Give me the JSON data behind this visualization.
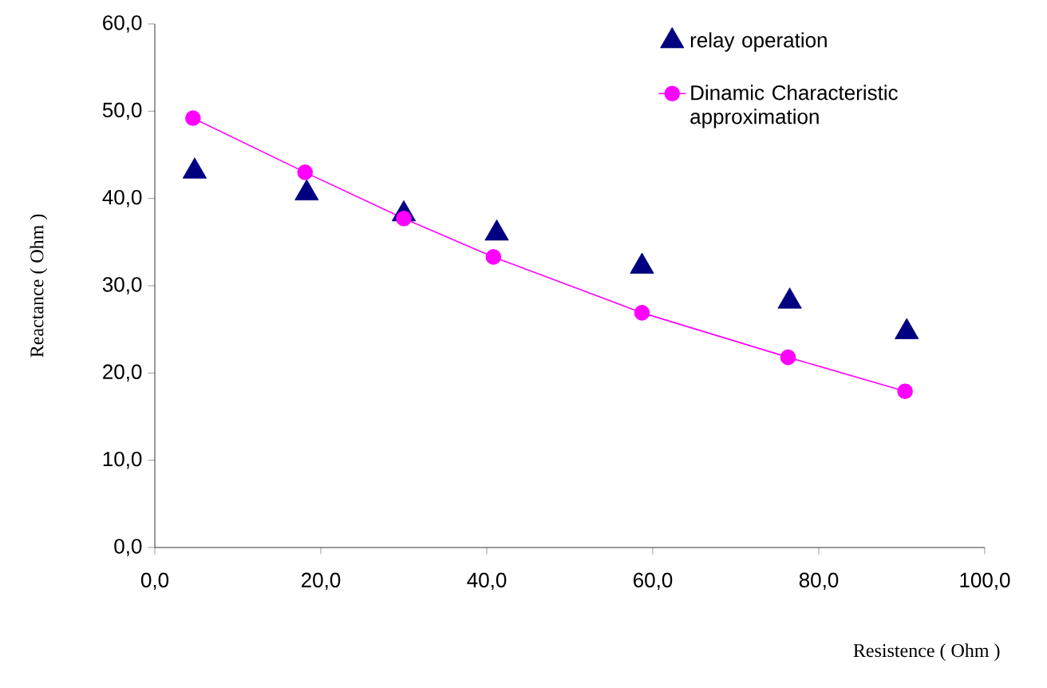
{
  "chart_data": {
    "type": "scatter",
    "xlabel": "Resistence ( Ohm )",
    "ylabel": "Reactance  ( Ohm )",
    "xlim": [
      0,
      100
    ],
    "ylim": [
      0,
      60
    ],
    "xticks": [
      {
        "value": 0,
        "label": "0,0"
      },
      {
        "value": 20,
        "label": "20,0"
      },
      {
        "value": 40,
        "label": "40,0"
      },
      {
        "value": 60,
        "label": "60,0"
      },
      {
        "value": 80,
        "label": "80,0"
      },
      {
        "value": 100,
        "label": "100,0"
      }
    ],
    "yticks": [
      {
        "value": 0,
        "label": "0,0"
      },
      {
        "value": 10,
        "label": "10,0"
      },
      {
        "value": 20,
        "label": "20,0"
      },
      {
        "value": 30,
        "label": "30,0"
      },
      {
        "value": 40,
        "label": "40,0"
      },
      {
        "value": 50,
        "label": "50,0"
      },
      {
        "value": 60,
        "label": "60,0"
      }
    ],
    "legend": "top right",
    "series": [
      {
        "name": "relay operation",
        "marker": "triangle",
        "color": "#000080",
        "x": [
          4.8,
          18.3,
          30,
          41.2,
          58.7,
          76.5,
          90.6
        ],
        "values": [
          43.1,
          40.6,
          38.2,
          36.0,
          32.2,
          28.2,
          24.7
        ]
      },
      {
        "name": "Dinamic Characteristic approximation",
        "type": "line",
        "marker": "circle",
        "color": "#ff00ff",
        "x": [
          4.6,
          18.1,
          30,
          40.8,
          58.7,
          76.3,
          90.4
        ],
        "values": [
          49.2,
          43.0,
          37.7,
          33.3,
          26.9,
          21.8,
          17.9
        ]
      }
    ]
  }
}
